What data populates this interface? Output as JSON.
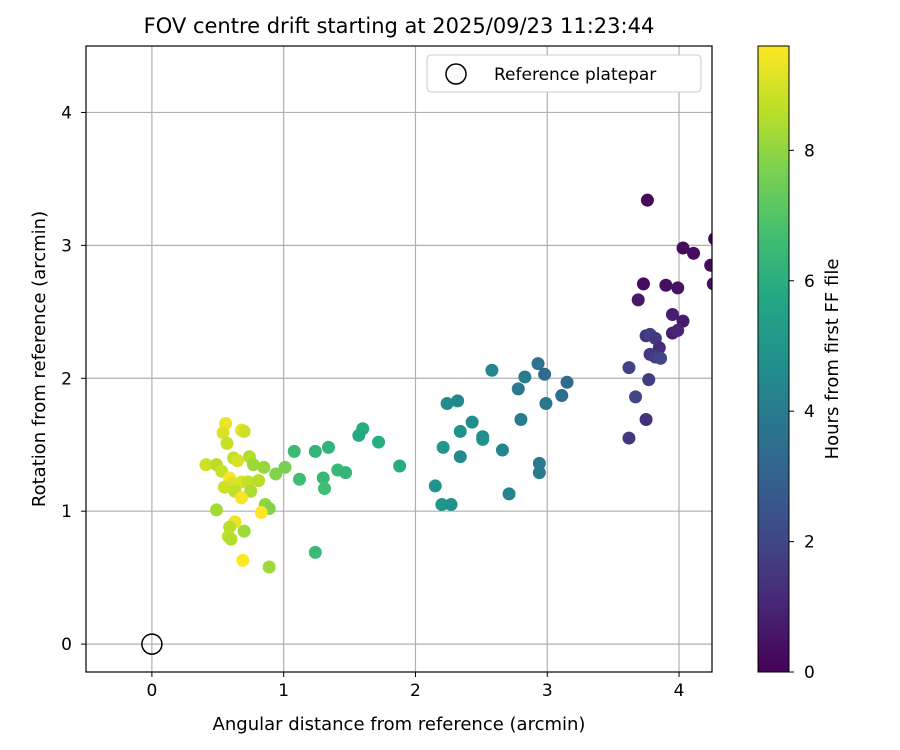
{
  "chart_data": {
    "type": "scatter",
    "title": "FOV centre drift starting at 2025/09/23 11:23:44",
    "xlabel": "Angular distance from reference (arcmin)",
    "ylabel": "Rotation from reference (arcmin)",
    "xlim": [
      -0.5,
      4.25
    ],
    "ylim": [
      -0.21,
      4.5
    ],
    "x_ticks": [
      0,
      1,
      2,
      3,
      4
    ],
    "y_ticks": [
      0,
      1,
      2,
      3,
      4
    ],
    "grid": true,
    "legend": {
      "position": "top-right",
      "entries": [
        "Reference platepar"
      ]
    },
    "reference_point": {
      "x": 0,
      "y": 0,
      "label": "Reference platepar"
    },
    "colorbar": {
      "label": "Hours from first FF file",
      "range": [
        0,
        9.6
      ],
      "ticks": [
        0,
        2,
        4,
        6,
        8
      ],
      "colormap": "viridis"
    },
    "points": [
      {
        "x": 3.76,
        "y": 3.34,
        "h": 0.2
      },
      {
        "x": 4.03,
        "y": 2.98,
        "h": 0.3
      },
      {
        "x": 4.11,
        "y": 2.94,
        "h": 0.3
      },
      {
        "x": 4.27,
        "y": 3.05,
        "h": 0.2
      },
      {
        "x": 4.24,
        "y": 2.85,
        "h": 0.3
      },
      {
        "x": 4.26,
        "y": 2.71,
        "h": 0.4
      },
      {
        "x": 3.73,
        "y": 2.71,
        "h": 0.3
      },
      {
        "x": 3.9,
        "y": 2.7,
        "h": 0.4
      },
      {
        "x": 3.99,
        "y": 2.68,
        "h": 0.5
      },
      {
        "x": 3.69,
        "y": 2.59,
        "h": 0.6
      },
      {
        "x": 3.95,
        "y": 2.48,
        "h": 0.8
      },
      {
        "x": 4.03,
        "y": 2.43,
        "h": 0.7
      },
      {
        "x": 3.95,
        "y": 2.34,
        "h": 0.8
      },
      {
        "x": 3.99,
        "y": 2.36,
        "h": 1.0
      },
      {
        "x": 3.75,
        "y": 2.32,
        "h": 1.4
      },
      {
        "x": 3.78,
        "y": 2.33,
        "h": 1.8
      },
      {
        "x": 3.82,
        "y": 2.3,
        "h": 1.6
      },
      {
        "x": 3.85,
        "y": 2.23,
        "h": 1.2
      },
      {
        "x": 3.78,
        "y": 2.18,
        "h": 1.5
      },
      {
        "x": 3.82,
        "y": 2.16,
        "h": 1.7
      },
      {
        "x": 3.86,
        "y": 2.15,
        "h": 2.0
      },
      {
        "x": 3.62,
        "y": 2.08,
        "h": 1.9
      },
      {
        "x": 3.77,
        "y": 1.99,
        "h": 1.7
      },
      {
        "x": 3.67,
        "y": 1.86,
        "h": 2.0
      },
      {
        "x": 3.75,
        "y": 1.69,
        "h": 1.3
      },
      {
        "x": 3.62,
        "y": 1.55,
        "h": 1.5
      },
      {
        "x": 2.93,
        "y": 2.11,
        "h": 3.6
      },
      {
        "x": 2.98,
        "y": 2.03,
        "h": 3.3
      },
      {
        "x": 2.58,
        "y": 2.06,
        "h": 4.4
      },
      {
        "x": 2.83,
        "y": 2.01,
        "h": 4.0
      },
      {
        "x": 2.78,
        "y": 1.92,
        "h": 3.9
      },
      {
        "x": 3.15,
        "y": 1.97,
        "h": 3.4
      },
      {
        "x": 3.11,
        "y": 1.87,
        "h": 3.5
      },
      {
        "x": 2.99,
        "y": 1.81,
        "h": 3.8
      },
      {
        "x": 2.24,
        "y": 1.81,
        "h": 4.6
      },
      {
        "x": 2.32,
        "y": 1.83,
        "h": 4.5
      },
      {
        "x": 2.8,
        "y": 1.69,
        "h": 4.0
      },
      {
        "x": 2.43,
        "y": 1.67,
        "h": 4.7
      },
      {
        "x": 2.34,
        "y": 1.6,
        "h": 4.9
      },
      {
        "x": 2.51,
        "y": 1.56,
        "h": 4.6
      },
      {
        "x": 2.51,
        "y": 1.54,
        "h": 4.8
      },
      {
        "x": 2.21,
        "y": 1.48,
        "h": 5.0
      },
      {
        "x": 2.66,
        "y": 1.46,
        "h": 4.3
      },
      {
        "x": 2.34,
        "y": 1.41,
        "h": 4.5
      },
      {
        "x": 2.94,
        "y": 1.36,
        "h": 3.9
      },
      {
        "x": 2.94,
        "y": 1.29,
        "h": 4.0
      },
      {
        "x": 2.15,
        "y": 1.19,
        "h": 4.9
      },
      {
        "x": 2.71,
        "y": 1.13,
        "h": 4.3
      },
      {
        "x": 2.2,
        "y": 1.05,
        "h": 5.0
      },
      {
        "x": 2.27,
        "y": 1.05,
        "h": 4.8
      },
      {
        "x": 1.6,
        "y": 1.62,
        "h": 5.9
      },
      {
        "x": 1.57,
        "y": 1.57,
        "h": 5.8
      },
      {
        "x": 1.72,
        "y": 1.52,
        "h": 6.0
      },
      {
        "x": 1.34,
        "y": 1.48,
        "h": 6.2
      },
      {
        "x": 1.08,
        "y": 1.45,
        "h": 6.5
      },
      {
        "x": 1.24,
        "y": 1.45,
        "h": 6.3
      },
      {
        "x": 1.88,
        "y": 1.34,
        "h": 5.9
      },
      {
        "x": 1.41,
        "y": 1.31,
        "h": 6.4
      },
      {
        "x": 1.47,
        "y": 1.29,
        "h": 6.3
      },
      {
        "x": 1.3,
        "y": 1.25,
        "h": 6.4
      },
      {
        "x": 1.12,
        "y": 1.24,
        "h": 6.6
      },
      {
        "x": 1.31,
        "y": 1.17,
        "h": 6.6
      },
      {
        "x": 1.24,
        "y": 0.69,
        "h": 6.5
      },
      {
        "x": 0.56,
        "y": 1.66,
        "h": 9.3
      },
      {
        "x": 0.54,
        "y": 1.59,
        "h": 9.1
      },
      {
        "x": 0.68,
        "y": 1.61,
        "h": 9.3
      },
      {
        "x": 0.7,
        "y": 1.6,
        "h": 8.9
      },
      {
        "x": 0.57,
        "y": 1.51,
        "h": 8.8
      },
      {
        "x": 0.62,
        "y": 1.4,
        "h": 8.7
      },
      {
        "x": 0.74,
        "y": 1.41,
        "h": 8.5
      },
      {
        "x": 0.65,
        "y": 1.38,
        "h": 9.0
      },
      {
        "x": 0.41,
        "y": 1.35,
        "h": 8.9
      },
      {
        "x": 0.49,
        "y": 1.35,
        "h": 8.6
      },
      {
        "x": 0.53,
        "y": 1.3,
        "h": 8.8
      },
      {
        "x": 0.77,
        "y": 1.35,
        "h": 8.2
      },
      {
        "x": 0.85,
        "y": 1.33,
        "h": 8.1
      },
      {
        "x": 0.59,
        "y": 1.25,
        "h": 9.5
      },
      {
        "x": 0.68,
        "y": 1.22,
        "h": 9.0
      },
      {
        "x": 0.61,
        "y": 1.21,
        "h": 9.1
      },
      {
        "x": 0.73,
        "y": 1.22,
        "h": 8.7
      },
      {
        "x": 0.81,
        "y": 1.23,
        "h": 8.6
      },
      {
        "x": 0.94,
        "y": 1.28,
        "h": 7.8
      },
      {
        "x": 1.01,
        "y": 1.33,
        "h": 7.6
      },
      {
        "x": 0.55,
        "y": 1.18,
        "h": 8.9
      },
      {
        "x": 0.63,
        "y": 1.15,
        "h": 8.7
      },
      {
        "x": 0.75,
        "y": 1.15,
        "h": 8.4
      },
      {
        "x": 0.68,
        "y": 1.1,
        "h": 9.5
      },
      {
        "x": 0.86,
        "y": 1.05,
        "h": 8.0
      },
      {
        "x": 0.89,
        "y": 1.02,
        "h": 7.8
      },
      {
        "x": 0.83,
        "y": 0.99,
        "h": 9.6
      },
      {
        "x": 0.49,
        "y": 1.01,
        "h": 8.3
      },
      {
        "x": 0.63,
        "y": 0.92,
        "h": 9.3
      },
      {
        "x": 0.59,
        "y": 0.88,
        "h": 8.6
      },
      {
        "x": 0.7,
        "y": 0.85,
        "h": 8.2
      },
      {
        "x": 0.58,
        "y": 0.81,
        "h": 8.7
      },
      {
        "x": 0.6,
        "y": 0.79,
        "h": 8.5
      },
      {
        "x": 0.69,
        "y": 0.63,
        "h": 9.6
      },
      {
        "x": 0.89,
        "y": 0.58,
        "h": 8.2
      }
    ]
  }
}
